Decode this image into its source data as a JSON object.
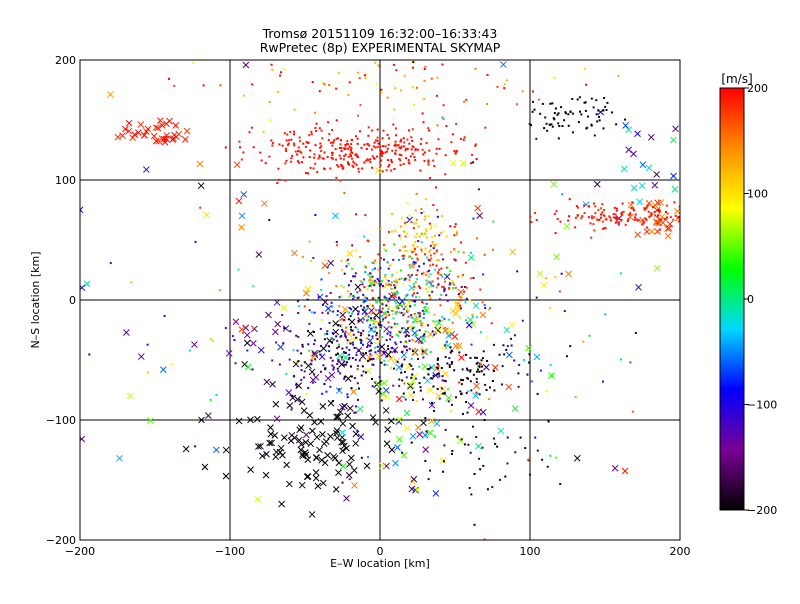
{
  "title_line1": "Tromsø 20151109 16:32:00–16:33:43",
  "title_line2": "RwPretec (8p) EXPERIMENTAL SKYMAP",
  "chart_data": {
    "type": "scatter",
    "title": "Tromsø 20151109 16:32:00–16:33:43",
    "subtitle": "RwPretec (8p) EXPERIMENTAL SKYMAP",
    "xlabel": "E–W location [km]",
    "ylabel": "N–S location [km]",
    "xlim": [
      -200,
      200
    ],
    "ylim": [
      -200,
      200
    ],
    "x_ticks": [
      -200,
      -100,
      0,
      100,
      200
    ],
    "y_ticks": [
      -200,
      -100,
      0,
      100,
      200
    ],
    "x_tick_labels": [
      "−200",
      "−100",
      "0",
      "100",
      "200"
    ],
    "y_tick_labels": [
      "−200",
      "−100",
      "0",
      "100",
      "200"
    ],
    "grid": true,
    "colorbar": {
      "label": "[m/s]",
      "min": -200,
      "max": 200,
      "ticks": [
        200,
        100,
        0,
        -100,
        -200
      ],
      "tick_labels": [
        "200",
        "100",
        "0",
        "−100",
        "−200"
      ],
      "stops": [
        "#000000",
        "#7a0096",
        "#0000ff",
        "#00d8ff",
        "#00ff00",
        "#ffff00",
        "#ff8c00",
        "#ff0000"
      ]
    },
    "series": [
      {
        "marker": "x",
        "clusters": [
          {
            "cx": -150,
            "cy": 140,
            "sx": 12,
            "sy": 6,
            "v": 185,
            "dv": 15,
            "n": 35
          },
          {
            "cx": -45,
            "cy": -120,
            "sx": 30,
            "sy": 22,
            "v": -200,
            "dv": 10,
            "n": 110
          },
          {
            "cx": -40,
            "cy": -45,
            "sx": 40,
            "sy": 30,
            "v": -170,
            "dv": 60,
            "n": 60
          },
          {
            "cx": 25,
            "cy": -45,
            "sx": 35,
            "sy": 30,
            "v": 50,
            "dv": 150,
            "n": 90
          },
          {
            "cx": 185,
            "cy": 65,
            "sx": 10,
            "sy": 10,
            "v": 170,
            "dv": 30,
            "n": 25
          },
          {
            "cx": 180,
            "cy": 120,
            "sx": 15,
            "sy": 20,
            "v": -80,
            "dv": 100,
            "n": 22
          },
          {
            "cx": 0,
            "cy": 0,
            "sx": 130,
            "sy": 100,
            "v": 0,
            "dv": 200,
            "n": 90
          },
          {
            "cx": 25,
            "cy": -130,
            "sx": 25,
            "sy": 20,
            "v": -20,
            "dv": 150,
            "n": 25
          }
        ]
      },
      {
        "marker": "dot",
        "clusters": [
          {
            "cx": -15,
            "cy": 125,
            "sx": 35,
            "sy": 10,
            "v": 195,
            "dv": 10,
            "n": 320
          },
          {
            "cx": 15,
            "cy": 180,
            "sx": 60,
            "sy": 15,
            "v": 160,
            "dv": 80,
            "n": 90
          },
          {
            "cx": 165,
            "cy": 70,
            "sx": 25,
            "sy": 6,
            "v": 190,
            "dv": 15,
            "n": 150
          },
          {
            "cx": 130,
            "cy": 155,
            "sx": 15,
            "sy": 10,
            "v": -195,
            "dv": 10,
            "n": 70
          },
          {
            "cx": 30,
            "cy": 30,
            "sx": 20,
            "sy": 25,
            "v": 180,
            "dv": 30,
            "n": 110
          },
          {
            "cx": 25,
            "cy": 55,
            "sx": 10,
            "sy": 10,
            "v": 110,
            "dv": 20,
            "n": 60
          },
          {
            "cx": 10,
            "cy": 0,
            "sx": 25,
            "sy": 25,
            "v": 20,
            "dv": 180,
            "n": 450
          },
          {
            "cx": -20,
            "cy": -40,
            "sx": 25,
            "sy": 20,
            "v": -150,
            "dv": 80,
            "n": 220
          },
          {
            "cx": 50,
            "cy": -60,
            "sx": 25,
            "sy": 15,
            "v": -190,
            "dv": 20,
            "n": 130
          },
          {
            "cx": 60,
            "cy": -130,
            "sx": 30,
            "sy": 20,
            "v": -190,
            "dv": 20,
            "n": 50
          },
          {
            "cx": 0,
            "cy": -20,
            "sx": 80,
            "sy": 60,
            "v": 0,
            "dv": 200,
            "n": 160
          }
        ]
      }
    ]
  }
}
